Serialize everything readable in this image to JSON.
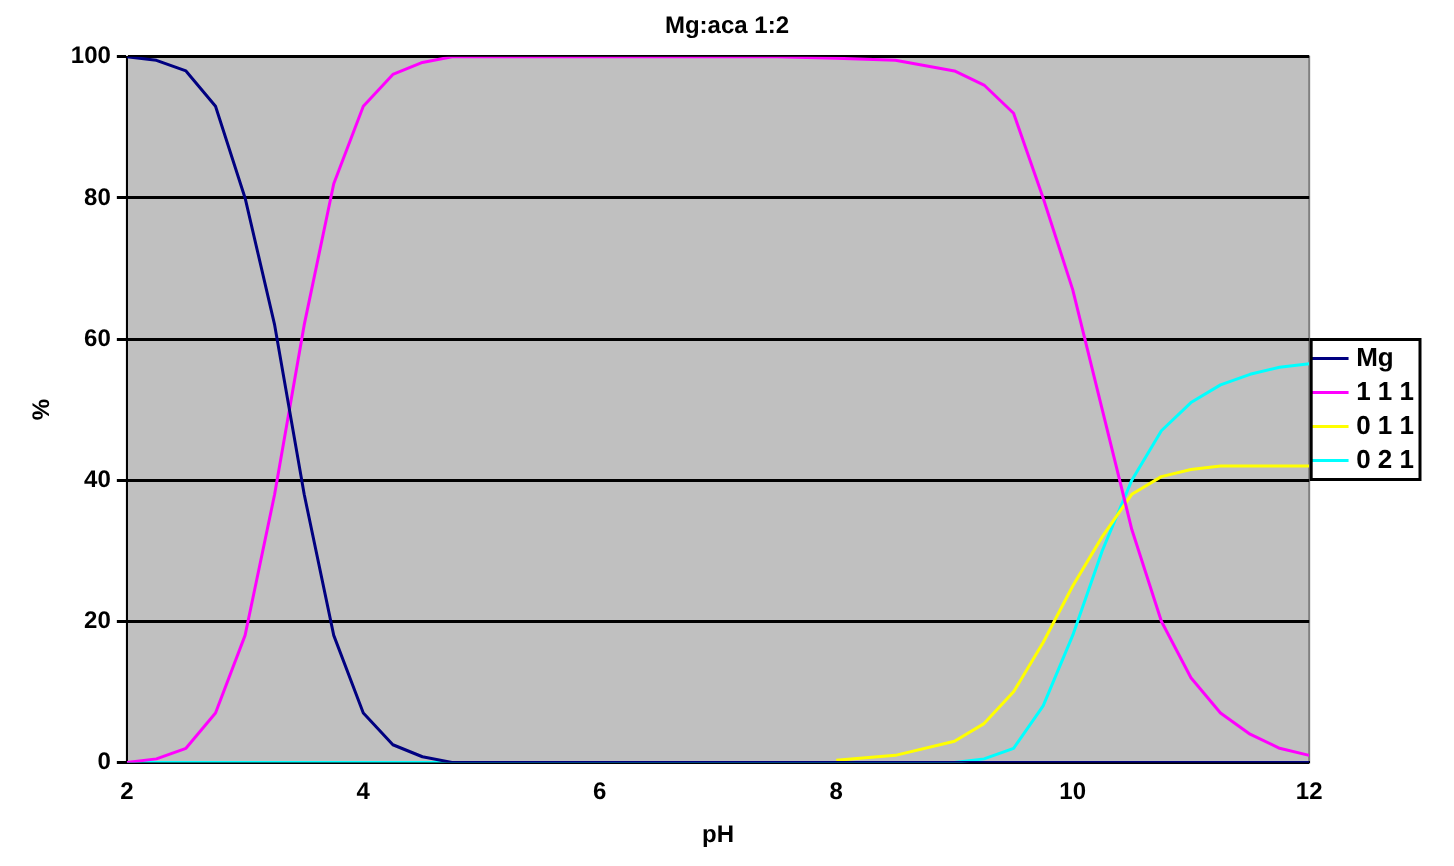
{
  "chart_data": {
    "type": "line",
    "title": "Mg:aca 1:2",
    "xlabel": "pH",
    "ylabel": "%",
    "x": [
      2,
      2.25,
      2.5,
      2.75,
      3,
      3.25,
      3.5,
      3.75,
      4,
      4.25,
      4.5,
      4.75,
      5,
      5.5,
      6,
      6.5,
      7,
      7.5,
      8,
      8.5,
      9,
      9.25,
      9.5,
      9.75,
      10,
      10.25,
      10.5,
      10.75,
      11,
      11.25,
      11.5,
      11.75,
      12
    ],
    "series": [
      {
        "name": "Mg",
        "color": "#000080",
        "values": [
          100,
          99.5,
          98,
          93,
          80,
          62,
          38,
          18,
          7,
          2.5,
          0.8,
          0,
          0,
          0,
          0,
          0,
          0,
          0,
          0,
          0,
          0,
          0,
          0,
          0,
          0,
          0,
          0,
          0,
          0,
          0,
          0,
          0,
          0
        ]
      },
      {
        "name": "1 1 1",
        "color": "#ff00ff",
        "values": [
          0,
          0.5,
          2,
          7,
          18,
          38,
          62,
          82,
          93,
          97.5,
          99.2,
          100,
          100,
          100,
          100,
          100,
          100,
          100,
          99.8,
          99.5,
          98,
          96,
          92,
          80,
          67,
          50,
          33,
          20,
          12,
          7,
          4,
          2,
          1
        ]
      },
      {
        "name": "0 1 1",
        "color": "#ffff00",
        "values": [
          null,
          null,
          null,
          null,
          null,
          null,
          null,
          null,
          null,
          null,
          null,
          null,
          null,
          null,
          null,
          null,
          null,
          null,
          0.3,
          1,
          3,
          5.5,
          10,
          17,
          25,
          32,
          38,
          40.5,
          41.5,
          42,
          42,
          42,
          42
        ]
      },
      {
        "name": "0 2 1",
        "color": "#00ffff",
        "values": [
          0,
          0,
          0,
          0,
          0,
          0,
          0,
          0,
          0,
          0,
          0,
          0,
          0,
          0,
          0,
          0,
          0,
          0,
          0,
          0,
          0,
          0.5,
          2,
          8,
          18,
          30,
          40,
          47,
          51,
          53.5,
          55,
          56,
          56.5
        ]
      }
    ],
    "xlim": [
      2,
      12
    ],
    "xticks": [
      2,
      4,
      6,
      8,
      10,
      12
    ],
    "ylim": [
      0,
      100
    ],
    "yticks": [
      0,
      20,
      40,
      60,
      80,
      100
    ],
    "grid": "y",
    "legend": "right",
    "marker": "none",
    "line_style": "solid"
  }
}
